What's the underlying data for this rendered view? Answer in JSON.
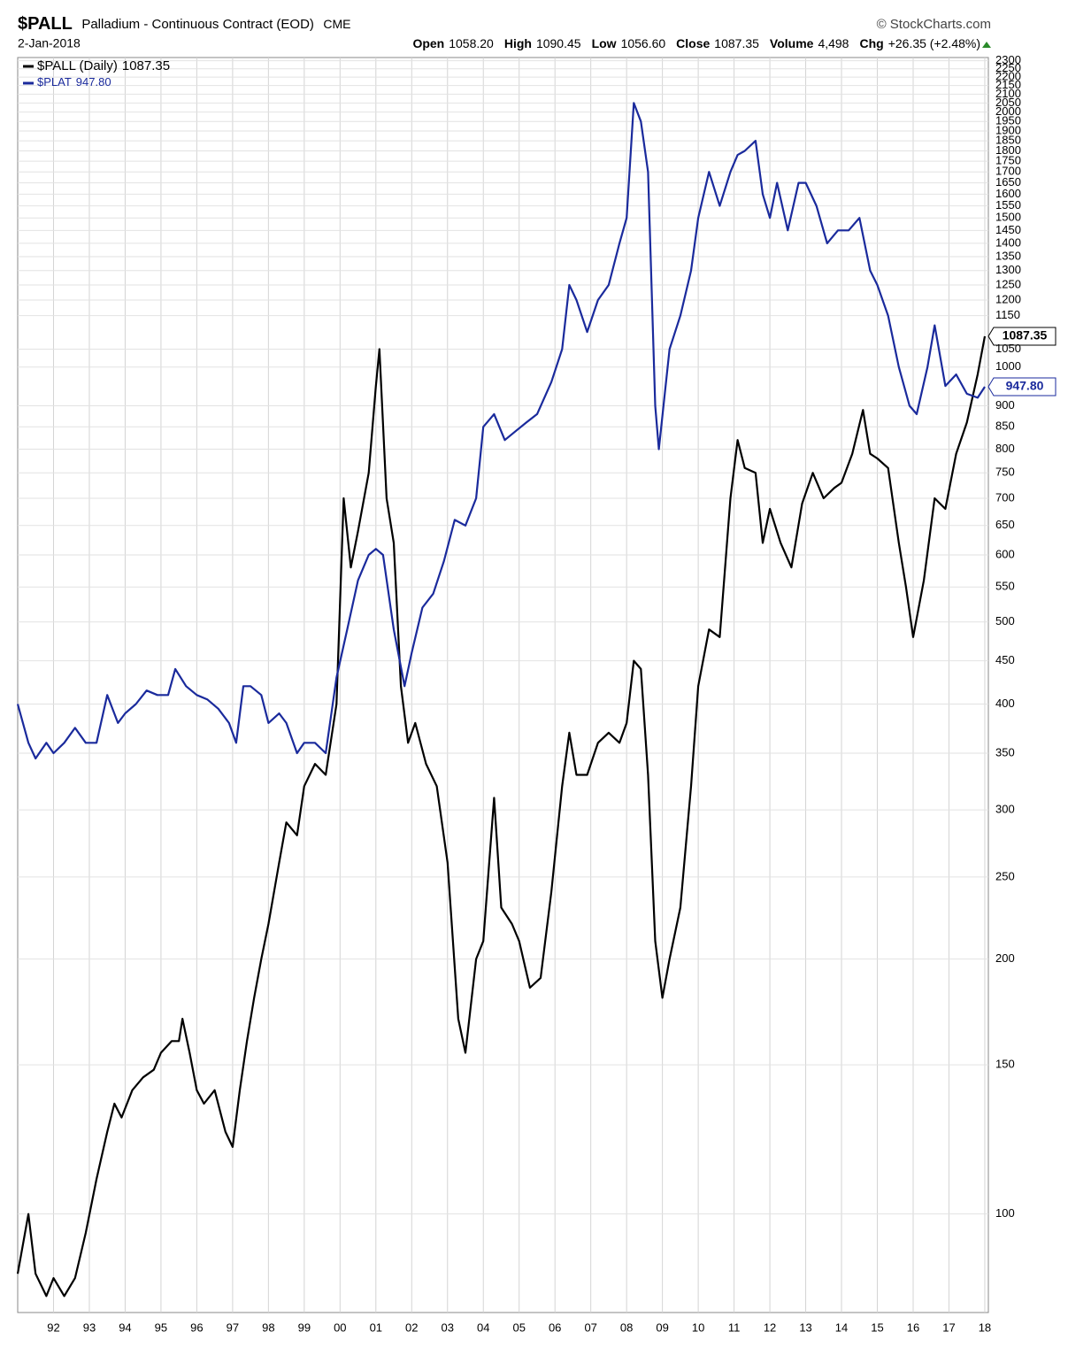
{
  "header": {
    "symbol": "$PALL",
    "description": "Palladium - Continuous Contract (EOD)",
    "exchange": "CME",
    "source": "© StockCharts.com",
    "date": "2-Jan-2018",
    "stats": [
      [
        "Open",
        "1058.20"
      ],
      [
        "High",
        "1090.45"
      ],
      [
        "Low",
        "1056.60"
      ],
      [
        "Close",
        "1087.35"
      ],
      [
        "Volume",
        "4,498"
      ],
      [
        "Chg",
        "+26.35 (+2.48%)"
      ]
    ]
  },
  "chart_data": {
    "type": "line",
    "log_scale": true,
    "grid": true,
    "legend": "top-left",
    "xlim": [
      1991.0,
      2018.1
    ],
    "ylim": [
      76.5,
      2320
    ],
    "xticks": [
      {
        "value": 1992,
        "label": "92"
      },
      {
        "value": 1993,
        "label": "93"
      },
      {
        "value": 1994,
        "label": "94"
      },
      {
        "value": 1995,
        "label": "95"
      },
      {
        "value": 1996,
        "label": "96"
      },
      {
        "value": 1997,
        "label": "97"
      },
      {
        "value": 1998,
        "label": "98"
      },
      {
        "value": 1999,
        "label": "99"
      },
      {
        "value": 2000,
        "label": "00"
      },
      {
        "value": 2001,
        "label": "01"
      },
      {
        "value": 2002,
        "label": "02"
      },
      {
        "value": 2003,
        "label": "03"
      },
      {
        "value": 2004,
        "label": "04"
      },
      {
        "value": 2005,
        "label": "05"
      },
      {
        "value": 2006,
        "label": "06"
      },
      {
        "value": 2007,
        "label": "07"
      },
      {
        "value": 2008,
        "label": "08"
      },
      {
        "value": 2009,
        "label": "09"
      },
      {
        "value": 2010,
        "label": "10"
      },
      {
        "value": 2011,
        "label": "11"
      },
      {
        "value": 2012,
        "label": "12"
      },
      {
        "value": 2013,
        "label": "13"
      },
      {
        "value": 2014,
        "label": "14"
      },
      {
        "value": 2015,
        "label": "15"
      },
      {
        "value": 2016,
        "label": "16"
      },
      {
        "value": 2017,
        "label": "17"
      },
      {
        "value": 2018,
        "label": "18"
      }
    ],
    "yticks": [
      100,
      150,
      200,
      250,
      300,
      350,
      400,
      450,
      500,
      550,
      600,
      650,
      700,
      750,
      800,
      850,
      900,
      1000,
      1050,
      1150,
      1200,
      1250,
      1300,
      1350,
      1400,
      1450,
      1500,
      1550,
      1600,
      1650,
      1700,
      1750,
      1800,
      1850,
      1900,
      1950,
      2000,
      2050,
      2100,
      2150,
      2200,
      2250,
      2300
    ],
    "series": [
      {
        "name": "$PALL (Daily)",
        "color": "#000000",
        "last_value": 1087.35,
        "last_label": "1087.35",
        "x": [
          1991.0,
          1991.3,
          1991.5,
          1991.8,
          1992.0,
          1992.3,
          1992.6,
          1992.9,
          1993.2,
          1993.5,
          1993.7,
          1993.9,
          1994.2,
          1994.5,
          1994.8,
          1995.0,
          1995.3,
          1995.5,
          1995.6,
          1995.8,
          1996.0,
          1996.2,
          1996.5,
          1996.8,
          1997.0,
          1997.2,
          1997.4,
          1997.6,
          1997.8,
          1998.0,
          1998.3,
          1998.5,
          1998.8,
          1999.0,
          1999.3,
          1999.6,
          1999.9,
          2000.1,
          2000.3,
          2000.5,
          2000.8,
          2001.0,
          2001.1,
          2001.3,
          2001.5,
          2001.7,
          2001.9,
          2002.1,
          2002.4,
          2002.7,
          2003.0,
          2003.3,
          2003.5,
          2003.8,
          2004.0,
          2004.3,
          2004.5,
          2004.8,
          2005.0,
          2005.3,
          2005.6,
          2005.9,
          2006.2,
          2006.4,
          2006.6,
          2006.9,
          2007.2,
          2007.5,
          2007.8,
          2008.0,
          2008.2,
          2008.4,
          2008.6,
          2008.8,
          2009.0,
          2009.2,
          2009.5,
          2009.8,
          2010.0,
          2010.3,
          2010.6,
          2010.9,
          2011.1,
          2011.3,
          2011.6,
          2011.8,
          2012.0,
          2012.3,
          2012.6,
          2012.9,
          2013.2,
          2013.5,
          2013.8,
          2014.0,
          2014.3,
          2014.6,
          2014.8,
          2015.0,
          2015.3,
          2015.6,
          2015.8,
          2016.0,
          2016.3,
          2016.6,
          2016.9,
          2017.2,
          2017.5,
          2017.8,
          2018.0
        ],
        "values": [
          85,
          100,
          85,
          80,
          84,
          80,
          84,
          95,
          110,
          125,
          135,
          130,
          140,
          145,
          148,
          155,
          160,
          160,
          170,
          155,
          140,
          135,
          140,
          125,
          120,
          140,
          160,
          180,
          200,
          220,
          260,
          290,
          280,
          320,
          340,
          330,
          400,
          700,
          580,
          640,
          750,
          950,
          1050,
          700,
          620,
          420,
          360,
          380,
          340,
          320,
          260,
          170,
          155,
          200,
          210,
          310,
          230,
          220,
          210,
          185,
          190,
          240,
          320,
          370,
          330,
          330,
          360,
          370,
          360,
          380,
          450,
          440,
          330,
          210,
          180,
          200,
          230,
          320,
          420,
          490,
          480,
          700,
          820,
          760,
          750,
          620,
          680,
          620,
          580,
          690,
          750,
          700,
          720,
          730,
          790,
          890,
          790,
          780,
          760,
          620,
          550,
          480,
          560,
          700,
          680,
          790,
          860,
          980,
          1087.35
        ]
      },
      {
        "name": "$PLAT",
        "color": "#1a2a9c",
        "last_value": 947.8,
        "last_label": "947.80",
        "x": [
          1991.0,
          1991.3,
          1991.5,
          1991.8,
          1992.0,
          1992.3,
          1992.6,
          1992.9,
          1993.2,
          1993.5,
          1993.8,
          1994.0,
          1994.3,
          1994.6,
          1994.9,
          1995.2,
          1995.4,
          1995.7,
          1996.0,
          1996.3,
          1996.6,
          1996.9,
          1997.1,
          1997.3,
          1997.5,
          1997.8,
          1998.0,
          1998.3,
          1998.5,
          1998.8,
          1999.0,
          1999.3,
          1999.6,
          1999.9,
          2000.2,
          2000.5,
          2000.8,
          2001.0,
          2001.2,
          2001.5,
          2001.8,
          2002.0,
          2002.3,
          2002.6,
          2002.9,
          2003.2,
          2003.5,
          2003.8,
          2004.0,
          2004.3,
          2004.6,
          2004.9,
          2005.2,
          2005.5,
          2005.9,
          2006.2,
          2006.4,
          2006.6,
          2006.9,
          2007.2,
          2007.5,
          2007.8,
          2008.0,
          2008.2,
          2008.4,
          2008.6,
          2008.8,
          2008.9,
          2009.2,
          2009.5,
          2009.8,
          2010.0,
          2010.3,
          2010.6,
          2010.9,
          2011.1,
          2011.3,
          2011.6,
          2011.8,
          2012.0,
          2012.2,
          2012.5,
          2012.8,
          2013.0,
          2013.3,
          2013.6,
          2013.9,
          2014.2,
          2014.5,
          2014.8,
          2015.0,
          2015.3,
          2015.6,
          2015.9,
          2016.1,
          2016.4,
          2016.6,
          2016.9,
          2017.2,
          2017.5,
          2017.8,
          2018.0
        ],
        "values": [
          400,
          360,
          345,
          360,
          350,
          360,
          375,
          360,
          360,
          410,
          380,
          390,
          400,
          415,
          410,
          410,
          440,
          420,
          410,
          405,
          395,
          380,
          360,
          420,
          420,
          410,
          380,
          390,
          380,
          350,
          360,
          360,
          350,
          430,
          490,
          560,
          600,
          610,
          600,
          490,
          420,
          460,
          520,
          540,
          590,
          660,
          650,
          700,
          850,
          880,
          820,
          840,
          860,
          880,
          960,
          1050,
          1250,
          1200,
          1100,
          1200,
          1250,
          1400,
          1500,
          2050,
          1950,
          1700,
          900,
          800,
          1050,
          1150,
          1300,
          1500,
          1700,
          1550,
          1700,
          1780,
          1800,
          1850,
          1600,
          1500,
          1650,
          1450,
          1650,
          1650,
          1550,
          1400,
          1450,
          1450,
          1500,
          1300,
          1250,
          1150,
          1000,
          900,
          880,
          1000,
          1120,
          950,
          980,
          930,
          920,
          947.8
        ]
      }
    ]
  }
}
